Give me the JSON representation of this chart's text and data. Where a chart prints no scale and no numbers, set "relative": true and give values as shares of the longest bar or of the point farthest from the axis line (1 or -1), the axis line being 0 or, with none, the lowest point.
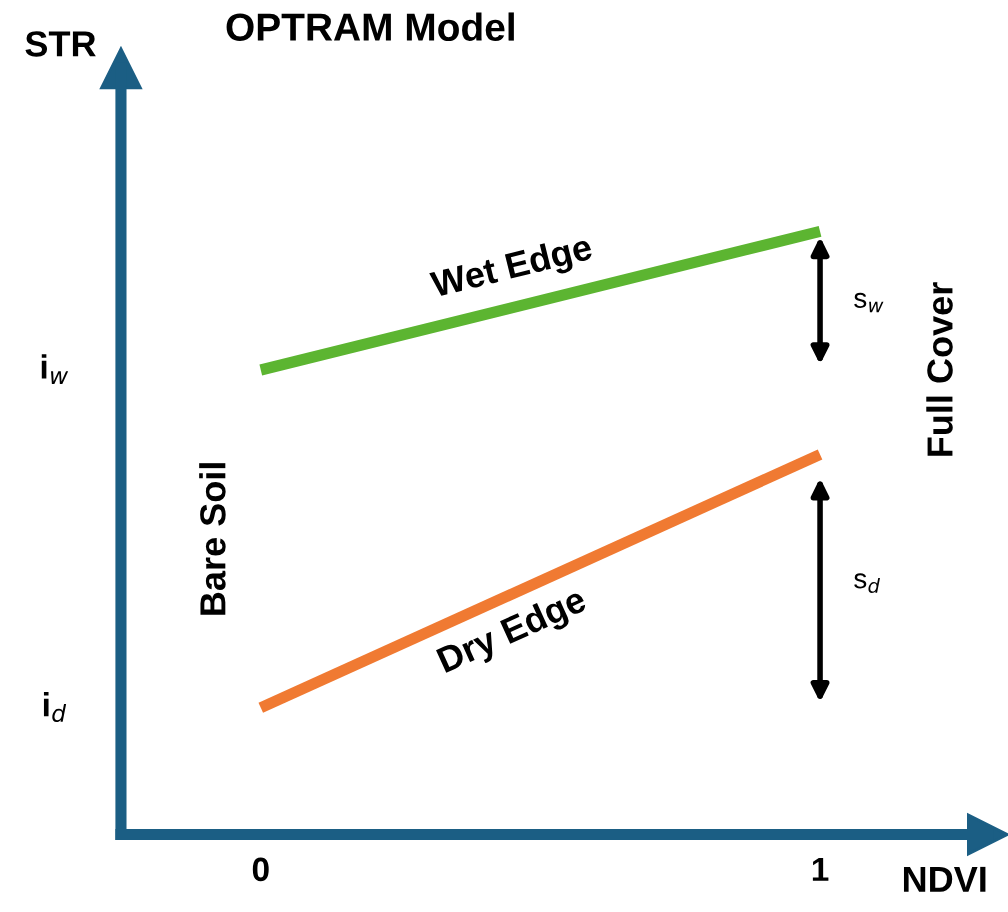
{
  "chart_data": {
    "type": "line",
    "title": "OPTRAM Model",
    "xlabel": "NDVI",
    "ylabel": "STR",
    "relative": true,
    "x": [
      0,
      1
    ],
    "xlim": [
      -0.25,
      1.3
    ],
    "xticks": [
      0,
      1
    ],
    "grid": false,
    "marker": "none",
    "line_style": "solid",
    "series": [
      {
        "name": "Wet Edge",
        "color": "#5cb531",
        "values": [
          0.77,
          1
        ]
      },
      {
        "name": "Dry Edge",
        "color": "#f07a32",
        "values": [
          0.21,
          0.63
        ]
      }
    ],
    "annotations": [
      "i$_{w}$",
      "i$_{d}$",
      "s$_{w}$",
      "s$_{d}$",
      "Bare Soil",
      "Full Cover"
    ]
  }
}
